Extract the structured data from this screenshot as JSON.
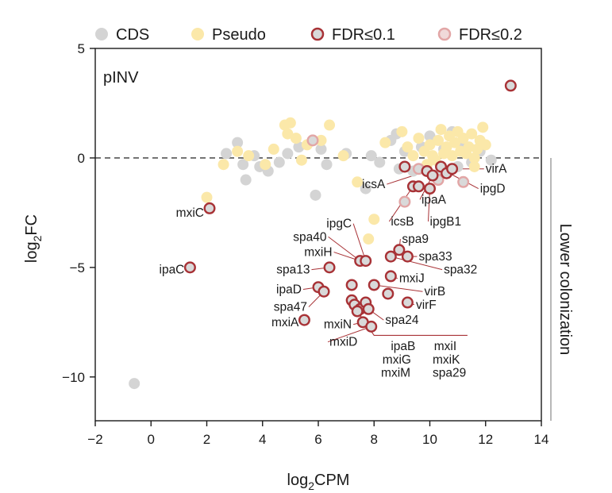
{
  "chart_data": {
    "type": "scatter",
    "panel_label": "pINV",
    "xlabel": {
      "main": "log",
      "sub": "2",
      "rest": "CPM"
    },
    "ylabel": {
      "main": "log",
      "sub": "2",
      "rest": "FC"
    },
    "xlim": [
      -2,
      14
    ],
    "ylim": [
      -12,
      5
    ],
    "xticks": [
      -2,
      0,
      2,
      4,
      6,
      8,
      10,
      12,
      14
    ],
    "xtick_labels": [
      "−2",
      "0",
      "2",
      "4",
      "6",
      "8",
      "10",
      "12",
      "14"
    ],
    "yticks": [
      5,
      0,
      -5,
      -10
    ],
    "ytick_labels": [
      "5",
      "0",
      "−5",
      "−10"
    ],
    "reference_line_y": 0,
    "side_annotation": "Lower colonization",
    "side_annotation_range": [
      0,
      -12
    ],
    "legend": [
      {
        "key": "cds",
        "label": "CDS",
        "fill": "#d4d4d4",
        "stroke": "none"
      },
      {
        "key": "pseudo",
        "label": "Pseudo",
        "fill": "#fbe8a9",
        "stroke": "none"
      },
      {
        "key": "fdr1",
        "label": "FDR≤0.1",
        "fill": "#d9d9d9",
        "stroke": "#a83236"
      },
      {
        "key": "fdr2",
        "label": "FDR≤0.2",
        "fill": "#f0d9d9",
        "stroke": "#e2a6a6"
      }
    ],
    "colors": {
      "cds": "#d4d4d4",
      "pseudo": "#fbe8a9",
      "fdr_fill": "#d9d9d9",
      "fdr1_stroke": "#a83236",
      "fdr2_stroke": "#e2a6a6",
      "leader": "#a83236",
      "axis": "#1a1a1a",
      "side_bar": "#9a9a9a"
    },
    "series": [
      {
        "name": "CDS",
        "points": [
          [
            -0.6,
            -10.3
          ],
          [
            2.7,
            0.2
          ],
          [
            3.1,
            0.7
          ],
          [
            3.3,
            -0.3
          ],
          [
            3.4,
            -1.0
          ],
          [
            3.7,
            0.1
          ],
          [
            3.9,
            -0.4
          ],
          [
            4.2,
            -0.6
          ],
          [
            4.6,
            -0.2
          ],
          [
            4.9,
            0.2
          ],
          [
            5.3,
            0.5
          ],
          [
            5.9,
            -1.7
          ],
          [
            6.1,
            0.4
          ],
          [
            6.3,
            -0.3
          ],
          [
            7.0,
            0.2
          ],
          [
            7.7,
            -1.4
          ],
          [
            7.9,
            0.1
          ],
          [
            8.2,
            -0.2
          ],
          [
            8.6,
            0.8
          ],
          [
            8.8,
            1.1
          ],
          [
            8.9,
            -0.5
          ],
          [
            9.1,
            0.3
          ],
          [
            9.4,
            -0.6
          ],
          [
            9.7,
            0.5
          ],
          [
            10.0,
            1.0
          ],
          [
            10.2,
            -0.8
          ],
          [
            10.5,
            0.4
          ],
          [
            10.8,
            1.2
          ],
          [
            11.0,
            -0.4
          ],
          [
            11.2,
            0.6
          ],
          [
            11.5,
            -0.2
          ],
          [
            11.8,
            0.3
          ],
          [
            12.2,
            -0.1
          ]
        ]
      },
      {
        "name": "Pseudo",
        "points": [
          [
            2.0,
            -1.8
          ],
          [
            2.6,
            -0.3
          ],
          [
            3.1,
            0.3
          ],
          [
            3.5,
            0.1
          ],
          [
            4.1,
            -0.3
          ],
          [
            4.4,
            0.4
          ],
          [
            4.8,
            1.5
          ],
          [
            4.9,
            1.1
          ],
          [
            5.0,
            1.6
          ],
          [
            5.2,
            0.9
          ],
          [
            5.4,
            -0.1
          ],
          [
            5.6,
            0.6
          ],
          [
            6.1,
            0.8
          ],
          [
            6.4,
            1.5
          ],
          [
            6.9,
            0.1
          ],
          [
            7.4,
            -1.1
          ],
          [
            7.8,
            -3.7
          ],
          [
            8.0,
            -2.8
          ],
          [
            8.4,
            0.7
          ],
          [
            9.0,
            1.2
          ],
          [
            9.2,
            0.5
          ],
          [
            9.4,
            0.1
          ],
          [
            9.6,
            0.9
          ],
          [
            9.8,
            0.3
          ],
          [
            10.0,
            0.6
          ],
          [
            10.1,
            0.1
          ],
          [
            10.3,
            0.8
          ],
          [
            10.4,
            1.3
          ],
          [
            10.5,
            0.2
          ],
          [
            10.6,
            0.5
          ],
          [
            10.7,
            1.0
          ],
          [
            10.8,
            0.1
          ],
          [
            10.9,
            0.7
          ],
          [
            11.0,
            1.2
          ],
          [
            11.1,
            0.3
          ],
          [
            11.2,
            0.9
          ],
          [
            11.3,
            0.2
          ],
          [
            11.4,
            0.5
          ],
          [
            11.5,
            1.1
          ],
          [
            11.6,
            0.0
          ],
          [
            11.7,
            0.4
          ],
          [
            11.8,
            0.8
          ],
          [
            11.9,
            1.4
          ],
          [
            12.0,
            0.6
          ],
          [
            11.6,
            -0.4
          ],
          [
            10.2,
            -0.1
          ],
          [
            9.9,
            -0.3
          ],
          [
            10.6,
            -0.6
          ]
        ]
      },
      {
        "name": "FDR≤0.2",
        "points": [
          [
            5.8,
            0.8
          ],
          [
            9.1,
            -2.0
          ],
          [
            9.6,
            -0.5
          ],
          [
            10.3,
            -1.0
          ],
          [
            11.2,
            -1.1
          ]
        ]
      },
      {
        "name": "FDR≤0.1",
        "points": [
          [
            12.9,
            3.3
          ],
          [
            2.1,
            -2.3
          ],
          [
            1.4,
            -5.0
          ],
          [
            9.1,
            -0.4
          ],
          [
            9.4,
            -1.3
          ],
          [
            9.6,
            -1.3
          ],
          [
            9.9,
            -0.6
          ],
          [
            10.0,
            -1.4
          ],
          [
            10.1,
            -0.8
          ],
          [
            10.4,
            -0.4
          ],
          [
            10.6,
            -0.7
          ],
          [
            10.8,
            -0.5
          ],
          [
            7.5,
            -4.7
          ],
          [
            7.7,
            -4.7
          ],
          [
            8.9,
            -4.2
          ],
          [
            8.6,
            -4.5
          ],
          [
            9.2,
            -4.5
          ],
          [
            8.6,
            -5.4
          ],
          [
            6.4,
            -5.0
          ],
          [
            6.0,
            -5.9
          ],
          [
            6.2,
            -6.1
          ],
          [
            7.2,
            -5.8
          ],
          [
            8.0,
            -5.8
          ],
          [
            8.5,
            -6.2
          ],
          [
            9.2,
            -6.6
          ],
          [
            7.2,
            -6.5
          ],
          [
            7.3,
            -6.7
          ],
          [
            7.5,
            -6.9
          ],
          [
            7.7,
            -6.6
          ],
          [
            7.8,
            -6.9
          ],
          [
            7.4,
            -7.0
          ],
          [
            5.5,
            -7.4
          ],
          [
            7.6,
            -7.5
          ],
          [
            7.9,
            -7.7
          ]
        ]
      }
    ],
    "annotations": [
      {
        "label": "virA",
        "x": 12.0,
        "y": -0.5,
        "anchor": "start",
        "point": [
          10.9,
          -0.5
        ]
      },
      {
        "label": "ipgD",
        "x": 11.8,
        "y": -1.4,
        "anchor": "start",
        "point": [
          10.7,
          -0.7
        ]
      },
      {
        "label": "icsA",
        "x": 8.4,
        "y": -1.2,
        "anchor": "end",
        "point": [
          9.9,
          -0.6
        ]
      },
      {
        "label": "ipaA",
        "x": 9.7,
        "y": -1.9,
        "anchor": "start",
        "point": [
          10.1,
          -0.8
        ]
      },
      {
        "label": "icsB",
        "x": 8.6,
        "y": -2.9,
        "anchor": "start",
        "point": [
          9.4,
          -1.3
        ]
      },
      {
        "label": "ipgB1",
        "x": 10.0,
        "y": -2.9,
        "anchor": "start",
        "point": [
          10.0,
          -1.4
        ]
      },
      {
        "label": "mxiC",
        "x": 1.9,
        "y": -2.5,
        "anchor": "end"
      },
      {
        "label": "ipaC",
        "x": 1.2,
        "y": -5.1,
        "anchor": "end"
      },
      {
        "label": "ipgC",
        "x": 7.2,
        "y": -3.0,
        "anchor": "end",
        "point": [
          7.7,
          -4.7
        ]
      },
      {
        "label": "spa40",
        "x": 6.3,
        "y": -3.6,
        "anchor": "end",
        "point": [
          7.5,
          -4.7
        ]
      },
      {
        "label": "spa9",
        "x": 9.0,
        "y": -3.7,
        "anchor": "start",
        "point": [
          8.9,
          -4.2
        ]
      },
      {
        "label": "mxiH",
        "x": 6.5,
        "y": -4.3,
        "anchor": "end",
        "point": [
          7.5,
          -4.7
        ]
      },
      {
        "label": "spa33",
        "x": 9.6,
        "y": -4.5,
        "anchor": "start",
        "point": [
          9.2,
          -4.5
        ]
      },
      {
        "label": "spa13",
        "x": 5.7,
        "y": -5.1,
        "anchor": "end",
        "point": [
          6.4,
          -5.0
        ]
      },
      {
        "label": "spa32",
        "x": 10.5,
        "y": -5.1,
        "anchor": "start",
        "point": [
          8.6,
          -4.5
        ]
      },
      {
        "label": "mxiJ",
        "x": 8.9,
        "y": -5.5,
        "anchor": "start",
        "point": [
          8.6,
          -5.4
        ]
      },
      {
        "label": "ipaD",
        "x": 5.4,
        "y": -6.0,
        "anchor": "end",
        "point": [
          6.0,
          -5.9
        ]
      },
      {
        "label": "virB",
        "x": 9.8,
        "y": -6.1,
        "anchor": "start",
        "point": [
          8.0,
          -5.8
        ]
      },
      {
        "label": "spa47",
        "x": 5.6,
        "y": -6.8,
        "anchor": "end",
        "point": [
          6.2,
          -6.1
        ]
      },
      {
        "label": "virF",
        "x": 9.5,
        "y": -6.7,
        "anchor": "start",
        "point": [
          9.2,
          -6.6
        ]
      },
      {
        "label": "mxiA",
        "x": 5.3,
        "y": -7.5,
        "anchor": "end"
      },
      {
        "label": "spa24",
        "x": 8.4,
        "y": -7.4,
        "anchor": "start",
        "point": [
          7.8,
          -6.9
        ]
      },
      {
        "label": "mxiN",
        "x": 7.2,
        "y": -7.6,
        "anchor": "end",
        "point": [
          7.6,
          -7.5
        ]
      },
      {
        "label": "mxiD",
        "x": 6.4,
        "y": -8.4,
        "anchor": "start",
        "point": [
          7.9,
          -7.7
        ]
      },
      {
        "label": "ipaB",
        "x": 8.6,
        "y": -8.6,
        "anchor": "start"
      },
      {
        "label": "mxiI",
        "x": 10.15,
        "y": -8.6,
        "anchor": "start"
      },
      {
        "label": "mxiG",
        "x": 8.3,
        "y": -9.2,
        "anchor": "start"
      },
      {
        "label": "mxiK",
        "x": 10.1,
        "y": -9.2,
        "anchor": "start"
      },
      {
        "label": "mxiM",
        "x": 8.25,
        "y": -9.8,
        "anchor": "start"
      },
      {
        "label": "spa29",
        "x": 10.1,
        "y": -9.8,
        "anchor": "start"
      }
    ],
    "bracket": {
      "from": [
        7.4,
        -7.0
      ],
      "to": [
        11.35,
        -8.1
      ]
    }
  }
}
